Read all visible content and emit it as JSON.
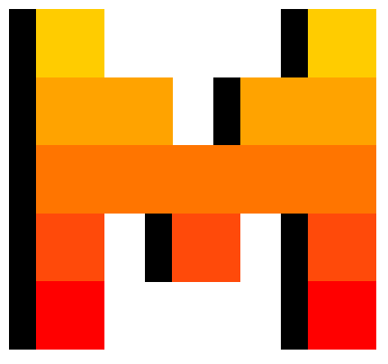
{
  "logo": {
    "icon": "pixel-m-logo-icon",
    "colors": {
      "row0": "#FFCC00",
      "row1": "#FFA300",
      "row2": "#FF7500",
      "row3": "#FF4A0A",
      "row4": "#FF0000",
      "shadow": "#000000"
    }
  }
}
